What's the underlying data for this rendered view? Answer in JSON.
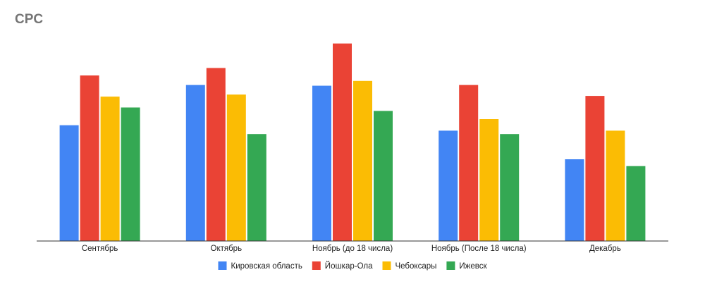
{
  "chart_data": {
    "type": "bar",
    "title": "CPC",
    "xlabel": "",
    "ylabel": "",
    "categories": [
      "Сентябрь",
      "Октябрь",
      "Ноябрь (до 18 числа)",
      "Ноябрь (После 18 числа)",
      "Декабрь"
    ],
    "series": [
      {
        "name": "Кировская область",
        "color": "#4285F4",
        "values": [
          170,
          229,
          228,
          162,
          120
        ]
      },
      {
        "name": "Йошкар-Ола",
        "color": "#EA4335",
        "values": [
          243,
          254,
          290,
          229,
          213
        ]
      },
      {
        "name": "Чебоксары",
        "color": "#FBBC04",
        "values": [
          212,
          215,
          235,
          179,
          162
        ]
      },
      {
        "name": "Ижевск",
        "color": "#34A853",
        "values": [
          196,
          157,
          191,
          157,
          110
        ]
      }
    ],
    "ylim": [
      0,
      300
    ],
    "grid": false,
    "legend_position": "bottom"
  }
}
